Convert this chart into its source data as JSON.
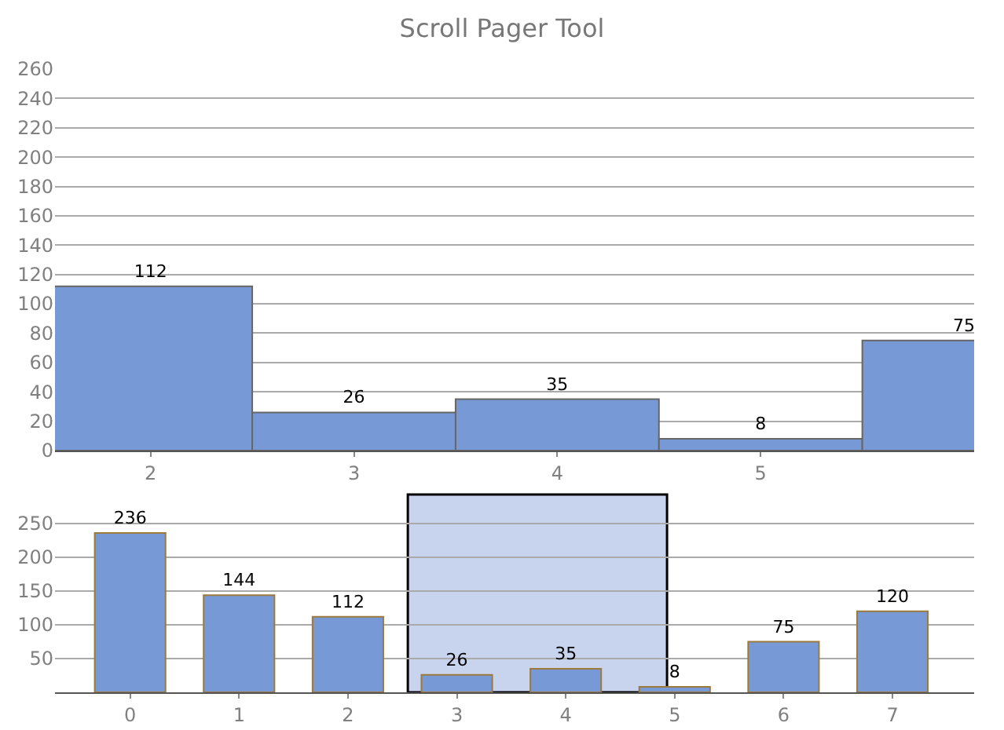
{
  "chart_data": [
    {
      "type": "bar",
      "title": "Scroll Pager Tool",
      "x": [
        2,
        3,
        4,
        5,
        6
      ],
      "values": [
        112,
        26,
        35,
        8,
        75
      ],
      "color": "#7799d6",
      "xlim": [
        1.53,
        6.05
      ],
      "xticks": [
        2,
        3,
        4,
        5
      ],
      "ylim": [
        0,
        260
      ],
      "yticks": [
        0,
        20,
        40,
        60,
        80,
        100,
        120,
        140,
        160,
        180,
        200,
        220,
        240,
        260
      ],
      "grid": "y",
      "data_labels": true,
      "legend": false
    },
    {
      "type": "bar",
      "x": [
        0,
        1,
        2,
        3,
        4,
        5,
        6,
        7
      ],
      "values": [
        236,
        144,
        112,
        26,
        35,
        8,
        75,
        120
      ],
      "color": "#7799d6",
      "xlim": [
        -0.69,
        7.75
      ],
      "xticks": [
        0,
        1,
        2,
        3,
        4,
        5,
        6,
        7
      ],
      "ylim": [
        0,
        293
      ],
      "yticks": [
        50,
        100,
        150,
        200,
        250
      ],
      "grid": "y",
      "data_labels": true,
      "legend": false,
      "bands": [
        {
          "axis": "x",
          "from": 2.55,
          "to": 4.93,
          "color": "#c8d4ee"
        }
      ]
    }
  ]
}
